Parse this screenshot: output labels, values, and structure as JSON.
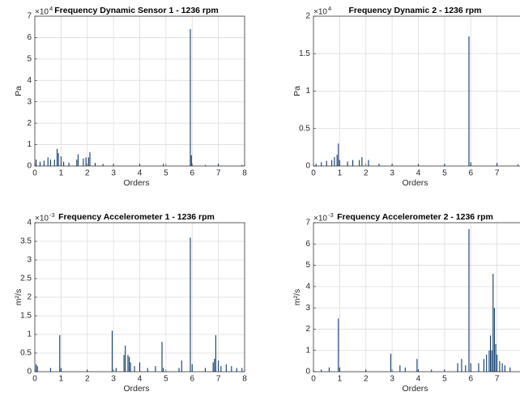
{
  "chart_data": [
    {
      "type": "stem",
      "title": "Frequency Dynamic Sensor 1 - 1236 rpm",
      "xlabel": "Orders",
      "ylabel": "Pa",
      "y_multiplier": "×10",
      "y_exponent": "4",
      "grid": true,
      "color": "#0e3a6b",
      "xlim": [
        0,
        8
      ],
      "xticks": [
        0,
        1,
        2,
        3,
        4,
        5,
        6,
        7,
        8
      ],
      "ylim": [
        0,
        7
      ],
      "yticks": [
        0,
        1,
        2,
        3,
        4,
        5,
        6,
        7
      ],
      "x": [
        0.05,
        0.2,
        0.35,
        0.5,
        0.6,
        0.75,
        0.85,
        0.9,
        1.0,
        1.1,
        1.3,
        1.6,
        1.65,
        1.85,
        1.95,
        2.05,
        2.1,
        2.3,
        2.6,
        3.0,
        4.0,
        4.9,
        5.93,
        5.97,
        6.5,
        7.0,
        7.9
      ],
      "values": [
        0.3,
        0.2,
        0.25,
        0.4,
        0.3,
        0.3,
        0.8,
        0.6,
        0.45,
        0.2,
        0.15,
        0.3,
        0.55,
        0.35,
        0.4,
        0.4,
        0.65,
        0.15,
        0.1,
        0.1,
        0.1,
        0.1,
        6.4,
        0.5,
        0.05,
        0.1,
        0.05
      ]
    },
    {
      "type": "stem",
      "title": "Frequency Dynamic 2 - 1236 rpm",
      "xlabel": "Orders",
      "ylabel": "Pa",
      "y_multiplier": "×10",
      "y_exponent": "4",
      "grid": true,
      "color": "#0e3a6b",
      "xlim": [
        0,
        8
      ],
      "xticks": [
        0,
        1,
        2,
        3,
        4,
        5,
        6,
        7,
        8
      ],
      "ylim": [
        0,
        2
      ],
      "yticks": [
        0,
        0.5,
        1,
        1.5,
        2
      ],
      "x": [
        0.1,
        0.3,
        0.5,
        0.7,
        0.8,
        0.9,
        0.95,
        1.0,
        1.3,
        1.5,
        1.75,
        1.85,
        2.1,
        2.5,
        3.0,
        4.0,
        5.0,
        5.93,
        6.0,
        7.0,
        7.8
      ],
      "values": [
        0.03,
        0.05,
        0.07,
        0.08,
        0.12,
        0.15,
        0.3,
        0.08,
        0.06,
        0.08,
        0.08,
        0.12,
        0.08,
        0.03,
        0.03,
        0.02,
        0.03,
        1.73,
        0.05,
        0.04,
        0.02
      ]
    },
    {
      "type": "stem",
      "title": "Frequency Accelerometer 1 - 1236 rpm",
      "xlabel": "Orders",
      "ylabel": "m²/s",
      "y_multiplier": "×10",
      "y_exponent": "-3",
      "grid": true,
      "color": "#0e3a6b",
      "xlim": [
        0,
        8
      ],
      "xticks": [
        0,
        1,
        2,
        3,
        4,
        5,
        6,
        7,
        8
      ],
      "ylim": [
        0,
        4
      ],
      "yticks": [
        0,
        0.5,
        1,
        1.5,
        2,
        2.5,
        3,
        3.5,
        4
      ],
      "x": [
        0.05,
        0.1,
        0.6,
        0.95,
        1.0,
        2.0,
        2.95,
        3.1,
        3.4,
        3.45,
        3.55,
        3.6,
        3.65,
        3.8,
        4.0,
        4.3,
        4.6,
        4.85,
        4.9,
        5.5,
        5.6,
        5.93,
        6.0,
        6.5,
        6.8,
        6.85,
        6.9,
        7.0,
        7.1,
        7.3,
        7.5,
        7.7,
        7.9
      ],
      "values": [
        0.2,
        0.15,
        0.1,
        0.98,
        0.1,
        0.05,
        1.1,
        0.1,
        0.45,
        0.7,
        0.45,
        0.4,
        0.25,
        0.15,
        0.25,
        0.1,
        0.15,
        0.8,
        0.1,
        0.1,
        0.3,
        3.6,
        0.2,
        0.1,
        0.25,
        0.35,
        0.98,
        0.3,
        0.15,
        0.2,
        0.15,
        0.1,
        0.1
      ]
    },
    {
      "type": "stem",
      "title": "Frequency Accelerometer 2 - 1236 rpm",
      "xlabel": "Orders",
      "ylabel": "m²/s",
      "y_multiplier": "×10",
      "y_exponent": "-3",
      "grid": true,
      "color": "#0e3a6b",
      "xlim": [
        0,
        8
      ],
      "xticks": [
        0,
        1,
        2,
        3,
        4,
        5,
        6,
        7,
        8
      ],
      "ylim": [
        0,
        7
      ],
      "yticks": [
        0,
        1,
        2,
        3,
        4,
        5,
        6,
        7
      ],
      "x": [
        0.3,
        0.6,
        0.95,
        1.0,
        2.0,
        2.95,
        3.3,
        3.5,
        3.95,
        4.0,
        4.5,
        5.0,
        5.5,
        5.65,
        5.8,
        5.93,
        6.0,
        6.3,
        6.5,
        6.6,
        6.7,
        6.75,
        6.8,
        6.85,
        6.9,
        6.95,
        7.0,
        7.1,
        7.2,
        7.3,
        7.5
      ],
      "values": [
        0.1,
        0.2,
        2.5,
        0.2,
        0.1,
        0.85,
        0.3,
        0.2,
        0.6,
        0.1,
        0.1,
        0.1,
        0.4,
        0.6,
        0.3,
        6.7,
        0.4,
        0.4,
        0.6,
        0.8,
        1.0,
        1.7,
        1.0,
        4.6,
        3.0,
        1.3,
        0.8,
        0.5,
        0.4,
        0.3,
        0.2
      ]
    }
  ]
}
